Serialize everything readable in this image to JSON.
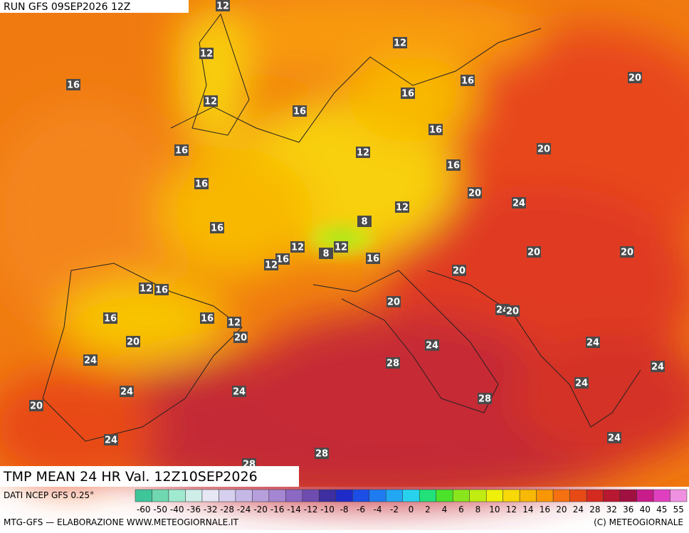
{
  "header": {
    "run": "RUN GFS 09SEP2026 12Z"
  },
  "title": "TMP MEAN 24 HR Val. 12Z10SEP2026",
  "footer": {
    "source": "DATI NCEP GFS 0.25°",
    "credit": "MTG-GFS — ELABORAZIONE WWW.METEOGIORNALE.IT",
    "copyright": "(C) METEOGIORNALE"
  },
  "colorbar": {
    "ticks": [
      -60,
      -50,
      -40,
      -36,
      -32,
      -28,
      -24,
      -20,
      -16,
      -14,
      -12,
      -10,
      -8,
      -6,
      -4,
      -2,
      0,
      2,
      4,
      6,
      8,
      10,
      12,
      14,
      16,
      20,
      24,
      28,
      32,
      36,
      40,
      45,
      55
    ],
    "colors": [
      "#3fc59a",
      "#6fd8b0",
      "#a0ead0",
      "#cfeee9",
      "#e6e6f5",
      "#d6d0ee",
      "#c6b8e6",
      "#b79fdc",
      "#a486d2",
      "#8b68c4",
      "#6f4cb0",
      "#3d2fa0",
      "#1f2bc8",
      "#1c4ee6",
      "#1e7cf0",
      "#22a8f2",
      "#28d2ee",
      "#22e07a",
      "#4be22a",
      "#8ae61c",
      "#c0ec12",
      "#eef00a",
      "#f8d806",
      "#f8b806",
      "#f89606",
      "#f47010",
      "#e84a16",
      "#d42a20",
      "#b81830",
      "#a01040",
      "#c81c8a",
      "#e040c0",
      "#f090e0"
    ]
  },
  "map": {
    "labels": [
      12,
      12,
      12,
      16,
      12,
      16,
      16,
      20,
      16,
      16,
      16,
      12,
      20,
      16,
      16,
      20,
      24,
      12,
      16,
      8,
      12,
      12,
      8,
      16,
      12,
      16,
      20,
      20,
      20,
      12,
      16,
      20,
      24,
      20,
      16,
      16,
      12,
      20,
      20,
      24,
      24,
      24,
      28,
      24,
      24,
      24,
      24,
      28,
      20,
      24,
      24,
      28,
      28
    ]
  }
}
